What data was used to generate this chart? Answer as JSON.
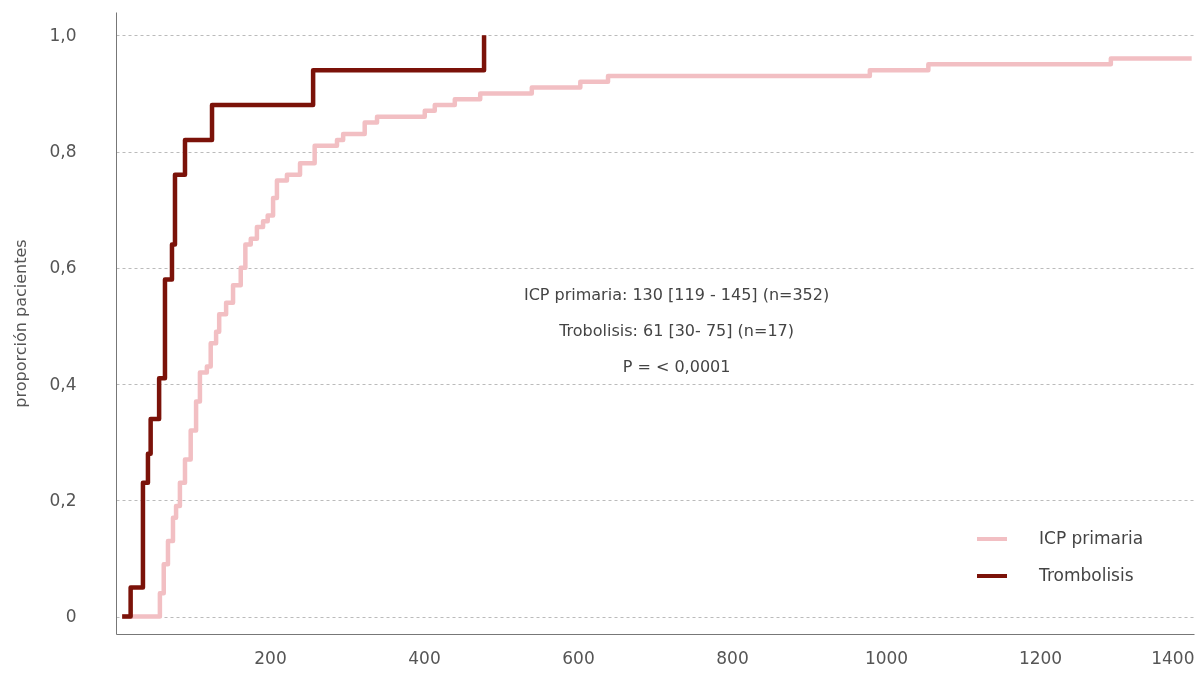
{
  "chart_data": {
    "type": "step",
    "ylabel": "proporción pacientes",
    "xlim": [
      0,
      1400
    ],
    "xticks": [
      200,
      400,
      600,
      800,
      1000,
      1200,
      1400
    ],
    "ylim": [
      -0.03,
      1.04
    ],
    "yticks": [
      0,
      {
        "value": 0.2,
        "label": "0,2"
      },
      {
        "value": 0.4,
        "label": "0,4"
      },
      {
        "value": 0.6,
        "label": "0,6"
      },
      {
        "value": 0.8,
        "label": "0,8"
      },
      {
        "value": 1,
        "label": "1,0"
      }
    ],
    "grid": "y",
    "legend": "bottom right",
    "line_style": "solid",
    "annotations": [
      "ICP primaria: 130 [119 - 145] (n=352)",
      "Trobolisis: 61 [30- 75] (n=17)",
      "P = < 0,0001"
    ],
    "series": [
      {
        "name": "ICP primaria",
        "color": "#f2bfc3",
        "x": [
          8,
          38,
          57,
          62,
          67.5,
          74,
          78,
          83,
          89.6,
          97,
          104,
          109,
          118,
          123,
          130,
          134,
          143,
          152,
          162,
          168,
          175,
          183,
          191,
          197,
          204,
          209,
          222,
          239,
          258,
          287,
          295,
          323,
          339,
          371,
          401,
          414,
          440,
          473,
          488,
          540,
          603,
          639,
          788,
          979,
          1055,
          1153,
          1292,
          1397
        ],
        "values": [
          0,
          0,
          0.04,
          0.09,
          0.13,
          0.17,
          0.19,
          0.23,
          0.27,
          0.32,
          0.37,
          0.42,
          0.43,
          0.47,
          0.49,
          0.52,
          0.54,
          0.57,
          0.6,
          0.64,
          0.65,
          0.67,
          0.68,
          0.69,
          0.72,
          0.75,
          0.76,
          0.78,
          0.81,
          0.82,
          0.83,
          0.85,
          0.86,
          0.86,
          0.87,
          0.88,
          0.89,
          0.9,
          0.9,
          0.91,
          0.92,
          0.93,
          0.93,
          0.94,
          0.95,
          0.95,
          0.96,
          0.96
        ]
      },
      {
        "name": "Trombolisis",
        "color": "#7b1209",
        "x": [
          8,
          19,
          35,
          41.5,
          45,
          56,
          63.6,
          72.7,
          76.6,
          89.6,
          124.7,
          256,
          478
        ],
        "values": [
          0,
          0.05,
          0.23,
          0.28,
          0.34,
          0.41,
          0.58,
          0.64,
          0.76,
          0.82,
          0.88,
          0.94,
          1
        ]
      }
    ]
  }
}
